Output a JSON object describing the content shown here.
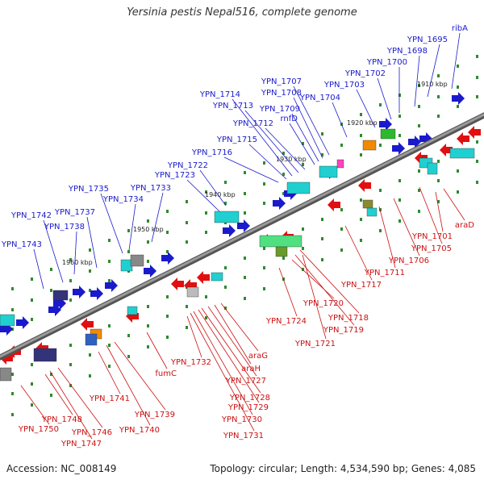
{
  "title": "Yersinia pestis Nepal516, complete genome",
  "footer": {
    "accession": "Accession: NC_008149",
    "summary": "Topology: circular; Length: 4,534,590 bp; Genes: 4,085"
  },
  "colors": {
    "forward_label": "#1a1acc",
    "reverse_label": "#cc1111",
    "backbone": "#7a7a7a",
    "tick": "#2e8b2e"
  },
  "kbp_ticks": [
    "1910 kbp",
    "1920 kbp",
    "1930 kbp",
    "1940 kbp",
    "1950 kbp",
    "1960 kbp"
  ],
  "forward_labels": [
    "ribA",
    "YPN_1695",
    "YPN_1698",
    "YPN_1700",
    "YPN_1702",
    "YPN_1703",
    "YPN_1704",
    "YPN_1707",
    "YPN_1708",
    "YPN_1709",
    "rnfD",
    "YPN_1712",
    "YPN_1713",
    "YPN_1714",
    "YPN_1715",
    "YPN_1716",
    "YPN_1722",
    "YPN_1723",
    "YPN_1733",
    "YPN_1734",
    "YPN_1735",
    "YPN_1737",
    "YPN_1738",
    "YPN_1742",
    "YPN_1743"
  ],
  "reverse_labels": [
    "araD",
    "YPN_1701",
    "YPN_1705",
    "YPN_1706",
    "YPN_1711",
    "YPN_1717",
    "YPN_1718",
    "YPN_1719",
    "YPN_1720",
    "YPN_1721",
    "YPN_1724",
    "araG",
    "araH",
    "YPN_1727",
    "YPN_1728",
    "YPN_1729",
    "YPN_1730",
    "YPN_1731",
    "YPN_1732",
    "fumC",
    "YPN_1739",
    "YPN_1740",
    "YPN_1741",
    "YPN_1746",
    "YPN_1747",
    "YPN_1748",
    "YPN_1750"
  ]
}
